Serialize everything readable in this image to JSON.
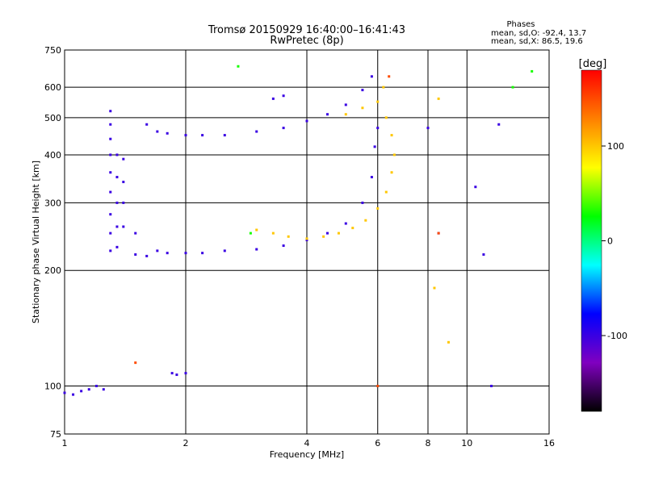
{
  "chart_data": {
    "type": "scatter",
    "title": "Tromsø 20150929 16:40:00–16:41:43",
    "subtitle": "RwPretec (8p)",
    "xlabel": "Frequency [MHz]",
    "ylabel": "Stationary phase Virtual Height [km]",
    "xscale": "log",
    "yscale": "log",
    "xlim": [
      1,
      16
    ],
    "ylim": [
      75,
      750
    ],
    "xticks": [
      1,
      2,
      4,
      6,
      8,
      10,
      16
    ],
    "yticks": [
      75,
      100,
      200,
      300,
      400,
      500,
      600,
      750
    ],
    "grid": true,
    "stats": {
      "heading": "Phases",
      "line_o": "mean, sd,O: -92.4, 13.7",
      "line_x": "mean, sd,X:  86.5, 19.6"
    },
    "colorbar": {
      "label": "[deg]",
      "range": [
        -180,
        180
      ],
      "ticks": [
        100,
        0,
        -100
      ],
      "colors": [
        "#ff0000",
        "#ff8000",
        "#ffff00",
        "#00ff00",
        "#00ffff",
        "#0000ff",
        "#8000c0",
        "#000000"
      ]
    },
    "series": [
      {
        "phase": -100,
        "points": [
          [
            1.0,
            96
          ],
          [
            1.05,
            95
          ],
          [
            1.1,
            97
          ],
          [
            1.15,
            98
          ],
          [
            1.2,
            100
          ],
          [
            1.25,
            98
          ],
          [
            1.3,
            520
          ],
          [
            1.3,
            480
          ],
          [
            1.3,
            440
          ],
          [
            1.3,
            400
          ],
          [
            1.3,
            360
          ],
          [
            1.3,
            320
          ],
          [
            1.3,
            280
          ],
          [
            1.3,
            250
          ],
          [
            1.3,
            225
          ],
          [
            1.35,
            400
          ],
          [
            1.35,
            350
          ],
          [
            1.35,
            300
          ],
          [
            1.35,
            260
          ],
          [
            1.35,
            230
          ],
          [
            1.4,
            390
          ],
          [
            1.4,
            340
          ],
          [
            1.4,
            300
          ],
          [
            1.4,
            260
          ],
          [
            1.5,
            250
          ],
          [
            1.5,
            220
          ],
          [
            1.6,
            480
          ],
          [
            1.6,
            218
          ],
          [
            1.7,
            460
          ],
          [
            1.7,
            225
          ],
          [
            1.8,
            455
          ],
          [
            1.8,
            222
          ],
          [
            1.85,
            108
          ],
          [
            1.9,
            107
          ],
          [
            2.0,
            450
          ],
          [
            2.0,
            222
          ],
          [
            2.0,
            108
          ],
          [
            2.2,
            450
          ],
          [
            2.2,
            222
          ],
          [
            2.5,
            450
          ],
          [
            2.5,
            225
          ],
          [
            3.0,
            460
          ],
          [
            3.0,
            227
          ],
          [
            3.5,
            470
          ],
          [
            3.5,
            232
          ],
          [
            4.0,
            490
          ],
          [
            4.0,
            240
          ],
          [
            4.5,
            510
          ],
          [
            4.5,
            250
          ],
          [
            5.0,
            540
          ],
          [
            5.0,
            265
          ],
          [
            5.5,
            590
          ],
          [
            5.5,
            300
          ],
          [
            5.8,
            640
          ],
          [
            5.8,
            350
          ],
          [
            5.9,
            420
          ],
          [
            6.0,
            470
          ],
          [
            3.3,
            560
          ],
          [
            3.5,
            570
          ],
          [
            8.0,
            470
          ],
          [
            8.5,
            250
          ],
          [
            10.5,
            330
          ],
          [
            11.0,
            220
          ],
          [
            12.0,
            480
          ],
          [
            11.5,
            100
          ]
        ]
      },
      {
        "phase": 100,
        "points": [
          [
            3.0,
            255
          ],
          [
            3.3,
            250
          ],
          [
            3.6,
            245
          ],
          [
            4.0,
            242
          ],
          [
            4.4,
            245
          ],
          [
            4.8,
            250
          ],
          [
            5.2,
            258
          ],
          [
            5.6,
            270
          ],
          [
            6.0,
            290
          ],
          [
            6.3,
            320
          ],
          [
            6.5,
            360
          ],
          [
            6.6,
            400
          ],
          [
            6.5,
            450
          ],
          [
            6.3,
            500
          ],
          [
            5.0,
            510
          ],
          [
            5.5,
            530
          ],
          [
            6.0,
            550
          ],
          [
            6.2,
            600
          ],
          [
            8.5,
            560
          ],
          [
            9.0,
            130
          ],
          [
            8.3,
            180
          ]
        ]
      },
      {
        "phase": 150,
        "points": [
          [
            6.4,
            640
          ],
          [
            6.0,
            100
          ],
          [
            1.5,
            115
          ],
          [
            8.5,
            250
          ]
        ]
      },
      {
        "phase": 30,
        "points": [
          [
            2.7,
            680
          ],
          [
            2.9,
            250
          ],
          [
            13.0,
            600
          ],
          [
            14.5,
            660
          ]
        ]
      }
    ]
  }
}
